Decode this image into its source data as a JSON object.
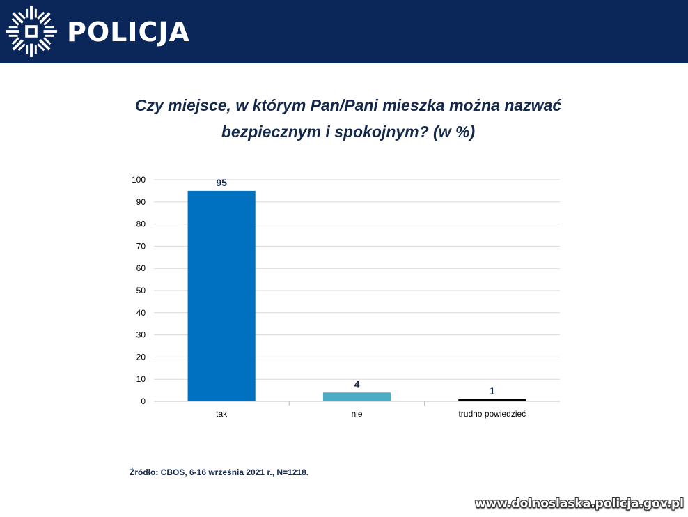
{
  "header": {
    "brand": "POLICJA",
    "logo_icon": "police-star-icon",
    "background": "#0b2759"
  },
  "title_lines": [
    "Czy miejsce, w którym Pan/Pani mieszka można nazwać",
    "bezpiecznym i spokojnym? (w %)"
  ],
  "source": "Źródło: CBOS, 6-16 września 2021 r., N=1218.",
  "watermark": "www.dolnoslaska.policja.gov.pl",
  "chart_data": {
    "type": "bar",
    "categories": [
      "tak",
      "nie",
      "trudno powiedzieć"
    ],
    "values": [
      95,
      4,
      1
    ],
    "colors": [
      "#0070c0",
      "#4bacc6",
      "#000000"
    ],
    "ylim": [
      0,
      100
    ],
    "yticks": [
      0,
      10,
      20,
      30,
      40,
      50,
      60,
      70,
      80,
      90,
      100
    ],
    "grid": true,
    "data_labels": true
  }
}
